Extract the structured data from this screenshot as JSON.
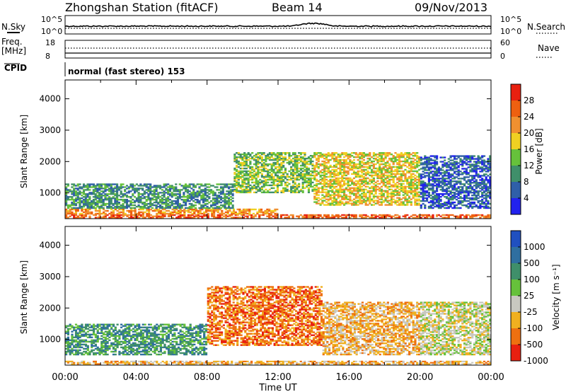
{
  "header": {
    "station": "Zhongshan Station (fitACF)",
    "beam": "Beam 14",
    "date": "09/Nov/2013"
  },
  "noise_panel": {
    "left_label": "N.Sky",
    "right_label": "N.Search",
    "left_ticks": [
      "10^5",
      "10^0"
    ],
    "right_ticks": [
      "10^5",
      "10^0"
    ]
  },
  "freq_panel": {
    "left_label": "Freq.",
    "left_unit": "[MHz]",
    "right_label": "Nave",
    "left_ticks": [
      "18",
      "8"
    ],
    "right_ticks": [
      "60",
      "0"
    ]
  },
  "cpid_panel": {
    "label": "CPID",
    "text": "normal (fast stereo) 153"
  },
  "chart_data": [
    {
      "type": "heatmap",
      "name": "power",
      "ylabel": "Slant Range [km]",
      "xlabel": "",
      "ylim": [
        180,
        4600
      ],
      "yticks": [
        "1000",
        "2000",
        "3000",
        "4000"
      ],
      "colorbar_label": "Power [dB]",
      "colorbar_ticks": [
        "4",
        "8",
        "12",
        "16",
        "20",
        "24",
        "28"
      ],
      "colors": [
        "#2222ee",
        "#2f5fa8",
        "#3f8f6a",
        "#66c13b",
        "#f0d022",
        "#f09030",
        "#ee6010",
        "#e82010"
      ],
      "bands": [
        {
          "t0": 0.0,
          "t1": 24.0,
          "r0": 200,
          "r1": 320,
          "level": 6
        },
        {
          "t0": 0.0,
          "t1": 12.0,
          "r0": 320,
          "r1": 500,
          "level": 5
        },
        {
          "t0": 0.0,
          "t1": 9.5,
          "r0": 500,
          "r1": 1300,
          "level": 2
        },
        {
          "t0": 9.5,
          "t1": 14.0,
          "r0": 1000,
          "r1": 2300,
          "level": 3
        },
        {
          "t0": 14.0,
          "t1": 20.0,
          "r0": 600,
          "r1": 2300,
          "level": 4
        },
        {
          "t0": 20.0,
          "t1": 24.0,
          "r0": 500,
          "r1": 2200,
          "level": 1
        }
      ]
    },
    {
      "type": "heatmap",
      "name": "velocity",
      "ylabel": "Slant Range [km]",
      "xlabel": "Time UT",
      "ylim": [
        180,
        4600
      ],
      "yticks": [
        "1000",
        "2000",
        "3000",
        "4000"
      ],
      "xticks": [
        "00:00",
        "04:00",
        "08:00",
        "12:00",
        "16:00",
        "20:00",
        "00:00"
      ],
      "colorbar_label": "Velocity [m s⁻¹]",
      "colorbar_ticks": [
        "1000",
        "500",
        "100",
        "25",
        "-25",
        "-100",
        "-500",
        "-1000"
      ],
      "colors": [
        "#2050c0",
        "#2f6fa0",
        "#3f8f6a",
        "#66c13b",
        "#c8c8c0",
        "#f0b020",
        "#ee7010",
        "#e82010"
      ],
      "bands": [
        {
          "t0": 0.0,
          "t1": 24.0,
          "r0": 200,
          "r1": 320,
          "level": 5
        },
        {
          "t0": 0.0,
          "t1": 8.0,
          "r0": 500,
          "r1": 1500,
          "level": 2
        },
        {
          "t0": 8.0,
          "t1": 14.5,
          "r0": 800,
          "r1": 2700,
          "level": 6
        },
        {
          "t0": 14.5,
          "t1": 20.0,
          "r0": 500,
          "r1": 2200,
          "level": 5
        },
        {
          "t0": 20.0,
          "t1": 24.0,
          "r0": 500,
          "r1": 2200,
          "level": 4
        }
      ]
    }
  ]
}
